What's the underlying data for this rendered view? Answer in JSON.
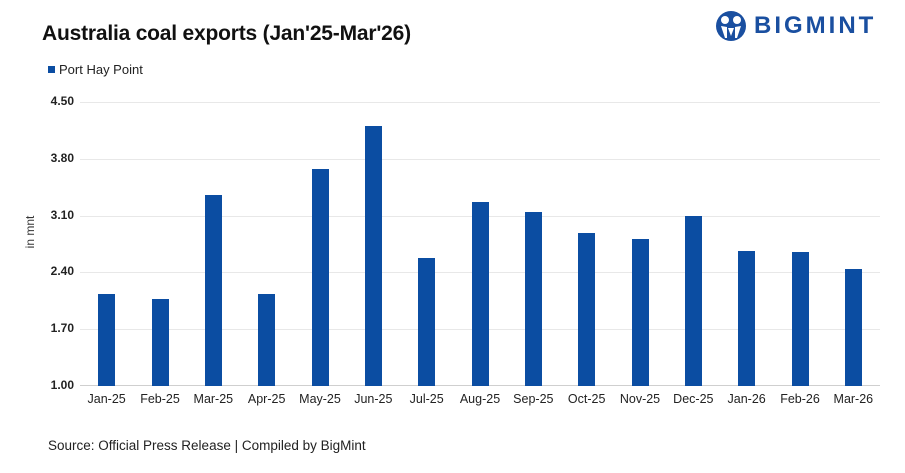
{
  "header": {
    "title": "Australia coal exports (Jan'25-Mar'26)",
    "logo_text": "BIGMINT"
  },
  "legend": {
    "label": "Port Hay Point",
    "color": "#0b4da2"
  },
  "footer": {
    "source": "Source: Official Press Release | Compiled by BigMint"
  },
  "chart_data": {
    "type": "bar",
    "title": "Australia coal exports (Jan'25-Mar'26)",
    "xlabel": "",
    "ylabel": "in mnt",
    "ylim": [
      1.0,
      4.5
    ],
    "yticks": [
      "1.00",
      "1.70",
      "2.40",
      "3.10",
      "3.80",
      "4.50"
    ],
    "grid": true,
    "legend_position": "top-left",
    "categories": [
      "Jan-25",
      "Feb-25",
      "Mar-25",
      "Apr-25",
      "May-25",
      "Jun-25",
      "Jul-25",
      "Aug-25",
      "Sep-25",
      "Oct-25",
      "Nov-25",
      "Dec-25",
      "Jan-26",
      "Feb-26",
      "Mar-26"
    ],
    "series": [
      {
        "name": "Port Hay Point",
        "color": "#0b4da2",
        "values": [
          2.13,
          2.07,
          3.35,
          2.14,
          3.68,
          4.21,
          2.58,
          3.27,
          3.14,
          2.89,
          2.81,
          3.09,
          2.66,
          2.65,
          2.44
        ]
      }
    ]
  }
}
